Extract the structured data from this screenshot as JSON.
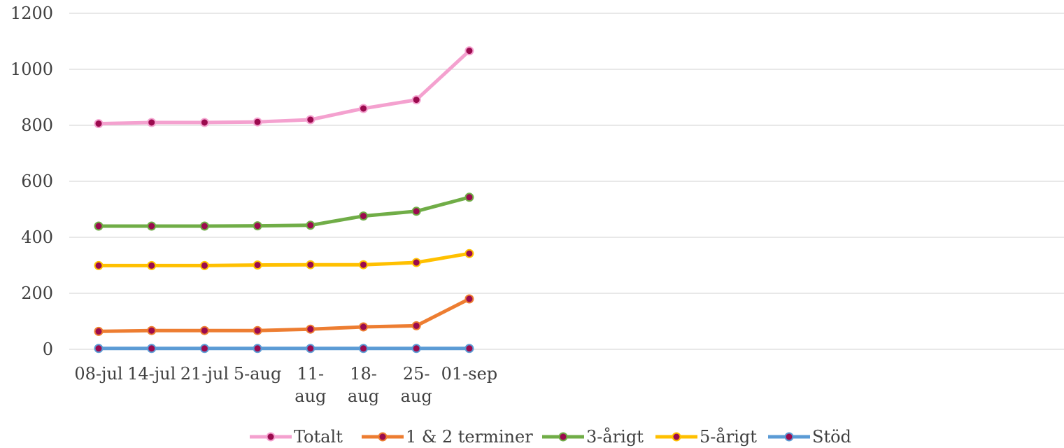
{
  "chart_data": {
    "type": "line",
    "categories": [
      "08-jul",
      "14-jul",
      "21-jul",
      "5-aug",
      "11-aug",
      "18-aug",
      "25-aug",
      "01-sep"
    ],
    "category_display": [
      [
        "08-jul"
      ],
      [
        "14-jul"
      ],
      [
        "21-jul"
      ],
      [
        "5-aug"
      ],
      [
        "11-",
        "aug"
      ],
      [
        "18-",
        "aug"
      ],
      [
        "25-",
        "aug"
      ],
      [
        "01-sep"
      ]
    ],
    "ylim": [
      0,
      1200
    ],
    "yticks": [
      "0",
      "200",
      "400",
      "600",
      "800",
      "1000",
      "1200"
    ],
    "grid": true,
    "legend_position": "bottom",
    "marker_color": "#9b0a4e",
    "series": [
      {
        "name": "Totalt",
        "color": "#f4a1cf",
        "values": [
          806,
          810,
          810,
          812,
          820,
          860,
          891,
          1066
        ]
      },
      {
        "name": "1 & 2 terminer",
        "color": "#ed7d31",
        "values": [
          64,
          67,
          67,
          67,
          72,
          80,
          84,
          180
        ]
      },
      {
        "name": "3-årigt",
        "color": "#70ad47",
        "values": [
          440,
          440,
          440,
          441,
          443,
          476,
          493,
          543
        ]
      },
      {
        "name": "5-årigt",
        "color": "#ffc000",
        "values": [
          299,
          299,
          299,
          301,
          302,
          302,
          310,
          342
        ]
      },
      {
        "name": "Stöd",
        "color": "#5b9bd5",
        "values": [
          3,
          3,
          3,
          3,
          3,
          3,
          3,
          3
        ]
      }
    ]
  }
}
